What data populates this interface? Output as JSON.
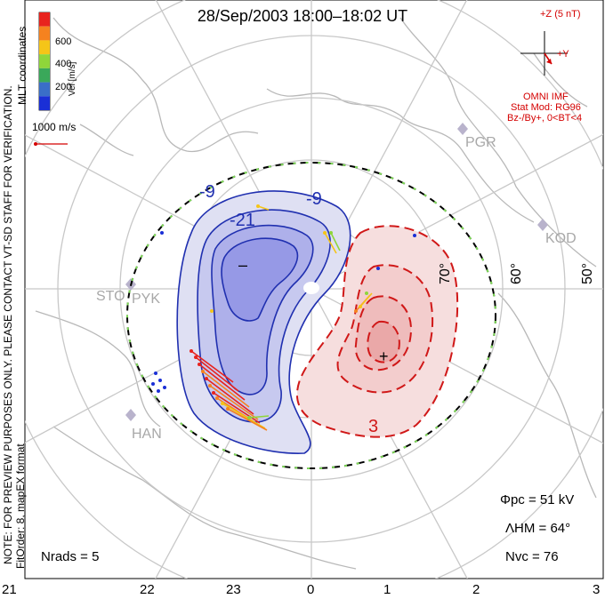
{
  "title": "28/Sep/2003 18:00–18:02 UT",
  "legend": {
    "label": "Vel [m/s]",
    "ticks": [
      "600",
      "400",
      "200"
    ],
    "colors": [
      "#e8231e",
      "#f5821f",
      "#f5c518",
      "#8fd63a",
      "#3aa85a",
      "#3a6ec8",
      "#1a2fd6"
    ]
  },
  "coords_label": "MLT coordinates",
  "vector_scale": "1000 m/s",
  "imf": {
    "z_label": "+Z (5 nT)",
    "y_label": "+Y",
    "source": "OMNI IMF",
    "model": "Stat Mod: RG96",
    "condition": "Bz-/By+, 0<BT<4"
  },
  "notice": "NOTE: FOR PREVIEW PURPOSES ONLY. PLEASE CONTACT VT-SD STAFF FOR VERIFICATION.",
  "fit": "FitOrder: 8, mapEX format",
  "stations": [
    "PGR",
    "KOD",
    "STO",
    "PYK",
    "HAN"
  ],
  "lat_labels": [
    "70°",
    "60°",
    "50°"
  ],
  "contour_labels": [
    "-9",
    "-9",
    "-21",
    "3"
  ],
  "cell_marks": [
    "–",
    "+"
  ],
  "stats": {
    "phi_pc": "Φpc = 51 kV",
    "lambda_hm": "ΛHM = 64°",
    "n_vc": "Nvc = 76",
    "n_rads": "Nrads = 5"
  },
  "mlt_axis": [
    "21",
    "22",
    "23",
    "0",
    "1",
    "2",
    "3"
  ]
}
